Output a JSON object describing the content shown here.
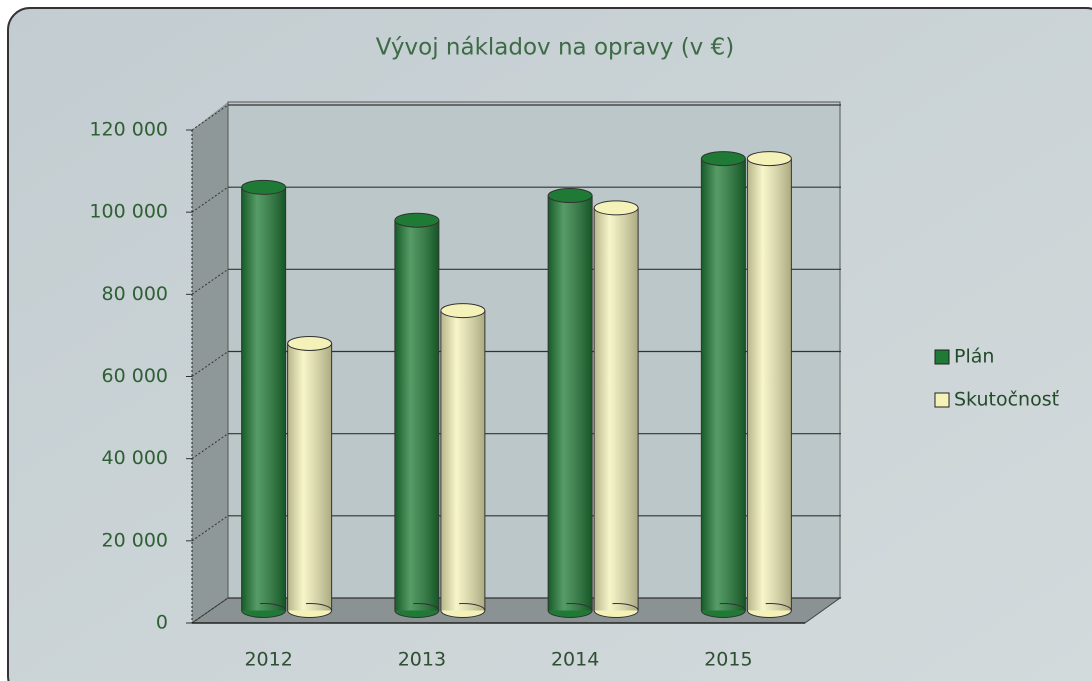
{
  "chart_data": {
    "type": "bar3d",
    "title": "Vývoj nákladov na opravy (v €)",
    "categories": [
      "2012",
      "2013",
      "2014",
      "2015"
    ],
    "series": [
      {
        "name": "Plán",
        "color": "#1f7a35",
        "values": [
          103000,
          95000,
          101000,
          110000
        ]
      },
      {
        "name": "Skutočnosť",
        "color": "#f4f2b8",
        "values": [
          65000,
          73000,
          98000,
          110000
        ]
      }
    ],
    "ylim": [
      0,
      120000
    ],
    "yticks": [
      0,
      {
        "value": 20000,
        "label": "20 000"
      },
      {
        "value": 40000,
        "label": "40 000"
      },
      {
        "value": 60000,
        "label": "60 000"
      },
      {
        "value": 80000,
        "label": "80 000"
      },
      {
        "value": 100000,
        "label": "100 000"
      },
      {
        "value": 120000,
        "label": "120 000"
      }
    ],
    "grid": true,
    "legend": "right"
  }
}
